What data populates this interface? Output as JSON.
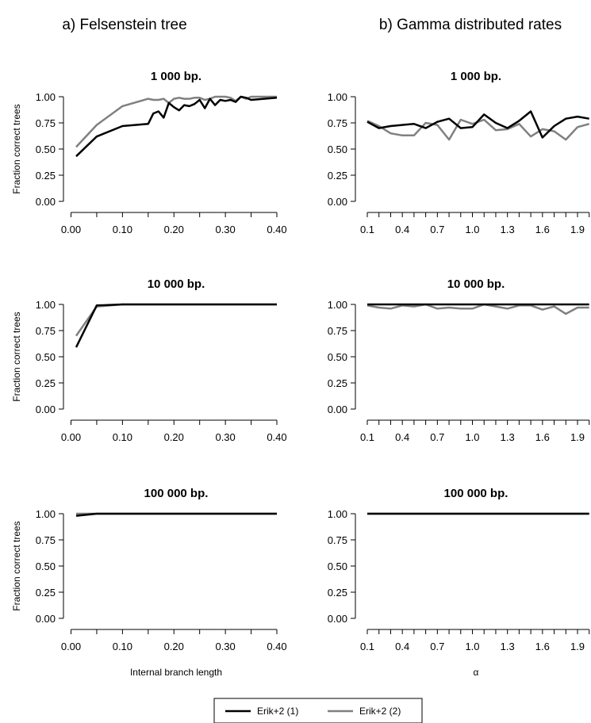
{
  "columns": [
    {
      "title": "a) Felsenstein tree"
    },
    {
      "title": "b) Gamma distributed rates"
    }
  ],
  "axes": {
    "ylabel": "Fraction correct trees",
    "left_xlabel": "Internal branch length",
    "right_xlabel": "α",
    "y_ticks": [
      "0.00",
      "0.25",
      "0.50",
      "0.75",
      "1.00"
    ],
    "left_x_ticks": [
      "0.00",
      "0.10",
      "0.20",
      "0.30",
      "0.40"
    ],
    "right_x_ticks": [
      "0.1",
      "0.4",
      "0.7",
      "1.0",
      "1.3",
      "1.6",
      "1.9"
    ]
  },
  "legend": [
    "Erik+2 (1)",
    "Erik+2 (2)"
  ],
  "colors": {
    "series1": "#000000",
    "series2": "#808080"
  },
  "chart_data": [
    {
      "type": "line",
      "panel": "a",
      "title": "1 000 bp.",
      "xlabel": "",
      "ylabel": "Fraction correct trees",
      "xlim": [
        0,
        0.4
      ],
      "ylim": [
        0,
        1
      ],
      "x": [
        0.01,
        0.05,
        0.1,
        0.15,
        0.16,
        0.17,
        0.18,
        0.19,
        0.2,
        0.21,
        0.22,
        0.23,
        0.24,
        0.25,
        0.26,
        0.27,
        0.28,
        0.29,
        0.3,
        0.31,
        0.32,
        0.33,
        0.34,
        0.35,
        0.4
      ],
      "series": [
        {
          "name": "Erik+2 (1)",
          "values": [
            0.43,
            0.62,
            0.72,
            0.74,
            0.84,
            0.86,
            0.8,
            0.94,
            0.9,
            0.87,
            0.92,
            0.91,
            0.93,
            0.97,
            0.89,
            0.98,
            0.92,
            0.97,
            0.96,
            0.97,
            0.95,
            1.0,
            0.99,
            0.97,
            0.99
          ]
        },
        {
          "name": "Erik+2 (2)",
          "values": [
            0.52,
            0.73,
            0.91,
            0.98,
            0.97,
            0.97,
            0.98,
            0.94,
            0.98,
            0.99,
            0.98,
            0.98,
            0.99,
            0.99,
            0.97,
            0.98,
            1.0,
            1.0,
            1.0,
            0.99,
            0.96,
            1.0,
            0.98,
            1.0,
            1.0
          ]
        }
      ]
    },
    {
      "type": "line",
      "panel": "b",
      "title": "1 000 bp.",
      "xlabel": "",
      "ylabel": "",
      "xlim": [
        0.1,
        1.95
      ],
      "ylim": [
        0,
        1
      ],
      "x": [
        0.1,
        0.2,
        0.3,
        0.4,
        0.5,
        0.6,
        0.7,
        0.8,
        0.9,
        1.0,
        1.1,
        1.2,
        1.3,
        1.4,
        1.5,
        1.6,
        1.7,
        1.8,
        1.9,
        2.0
      ],
      "series": [
        {
          "name": "Erik+2 (1)",
          "values": [
            0.76,
            0.7,
            0.72,
            0.73,
            0.74,
            0.7,
            0.76,
            0.79,
            0.7,
            0.71,
            0.83,
            0.75,
            0.7,
            0.77,
            0.86,
            0.61,
            0.72,
            0.79,
            0.81,
            0.79
          ]
        },
        {
          "name": "Erik+2 (2)",
          "values": [
            0.77,
            0.72,
            0.65,
            0.63,
            0.63,
            0.75,
            0.73,
            0.59,
            0.78,
            0.74,
            0.78,
            0.68,
            0.69,
            0.74,
            0.62,
            0.69,
            0.67,
            0.59,
            0.71,
            0.74
          ]
        }
      ]
    },
    {
      "type": "line",
      "panel": "a",
      "title": "10 000 bp.",
      "xlabel": "",
      "ylabel": "Fraction correct trees",
      "xlim": [
        0,
        0.4
      ],
      "ylim": [
        0,
        1
      ],
      "x": [
        0.01,
        0.05,
        0.1,
        0.15,
        0.2,
        0.25,
        0.3,
        0.35,
        0.4
      ],
      "series": [
        {
          "name": "Erik+2 (1)",
          "values": [
            0.59,
            0.99,
            1.0,
            1.0,
            1.0,
            1.0,
            1.0,
            1.0,
            1.0
          ]
        },
        {
          "name": "Erik+2 (2)",
          "values": [
            0.7,
            0.98,
            1.0,
            1.0,
            1.0,
            1.0,
            1.0,
            1.0,
            1.0
          ]
        }
      ]
    },
    {
      "type": "line",
      "panel": "b",
      "title": "10 000 bp.",
      "xlabel": "",
      "ylabel": "",
      "xlim": [
        0.1,
        1.95
      ],
      "ylim": [
        0,
        1
      ],
      "x": [
        0.1,
        0.2,
        0.3,
        0.4,
        0.5,
        0.6,
        0.7,
        0.8,
        0.9,
        1.0,
        1.1,
        1.2,
        1.3,
        1.4,
        1.5,
        1.6,
        1.7,
        1.8,
        1.9,
        2.0
      ],
      "series": [
        {
          "name": "Erik+2 (1)",
          "values": [
            1.0,
            1.0,
            1.0,
            1.0,
            1.0,
            1.0,
            1.0,
            1.0,
            1.0,
            1.0,
            1.0,
            1.0,
            1.0,
            1.0,
            1.0,
            1.0,
            1.0,
            1.0,
            1.0,
            1.0
          ]
        },
        {
          "name": "Erik+2 (2)",
          "values": [
            0.99,
            0.97,
            0.96,
            0.99,
            0.98,
            1.0,
            0.96,
            0.97,
            0.96,
            0.96,
            1.0,
            0.98,
            0.96,
            0.99,
            0.99,
            0.95,
            0.98,
            0.91,
            0.97,
            0.97
          ]
        }
      ]
    },
    {
      "type": "line",
      "panel": "a",
      "title": "100 000 bp.",
      "xlabel": "Internal branch length",
      "ylabel": "Fraction correct trees",
      "xlim": [
        0,
        0.4
      ],
      "ylim": [
        0,
        1
      ],
      "x": [
        0.01,
        0.05,
        0.1,
        0.15,
        0.2,
        0.25,
        0.3,
        0.35,
        0.4
      ],
      "series": [
        {
          "name": "Erik+2 (1)",
          "values": [
            0.98,
            1.0,
            1.0,
            1.0,
            1.0,
            1.0,
            1.0,
            1.0,
            1.0
          ]
        },
        {
          "name": "Erik+2 (2)",
          "values": [
            1.0,
            1.0,
            1.0,
            1.0,
            1.0,
            1.0,
            1.0,
            1.0,
            1.0
          ]
        }
      ]
    },
    {
      "type": "line",
      "panel": "b",
      "title": "100 000 bp.",
      "xlabel": "α",
      "ylabel": "",
      "xlim": [
        0.1,
        1.95
      ],
      "ylim": [
        0,
        1
      ],
      "x": [
        0.1,
        0.2,
        0.3,
        0.4,
        0.5,
        0.6,
        0.7,
        0.8,
        0.9,
        1.0,
        1.1,
        1.2,
        1.3,
        1.4,
        1.5,
        1.6,
        1.7,
        1.8,
        1.9,
        2.0
      ],
      "series": [
        {
          "name": "Erik+2 (1)",
          "values": [
            1.0,
            1.0,
            1.0,
            1.0,
            1.0,
            1.0,
            1.0,
            1.0,
            1.0,
            1.0,
            1.0,
            1.0,
            1.0,
            1.0,
            1.0,
            1.0,
            1.0,
            1.0,
            1.0,
            1.0
          ]
        },
        {
          "name": "Erik+2 (2)",
          "values": [
            1.0,
            1.0,
            1.0,
            1.0,
            1.0,
            1.0,
            1.0,
            1.0,
            1.0,
            1.0,
            1.0,
            1.0,
            1.0,
            1.0,
            1.0,
            1.0,
            1.0,
            1.0,
            1.0,
            1.0
          ]
        }
      ]
    }
  ]
}
